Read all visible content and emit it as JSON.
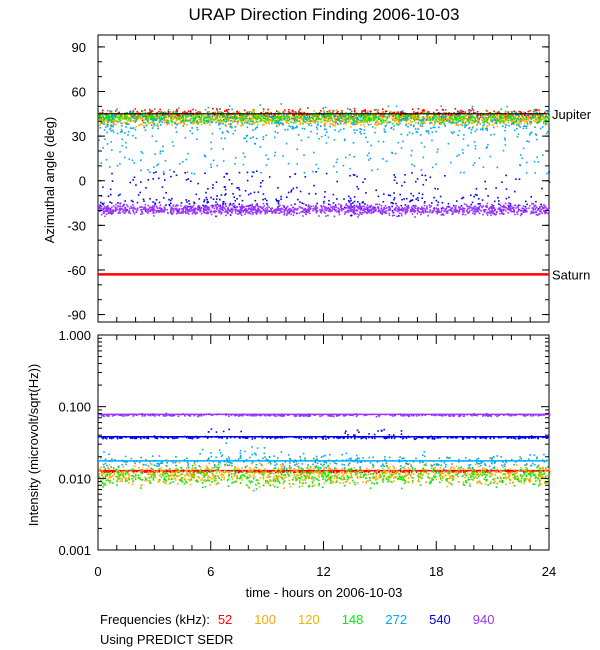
{
  "chart_data": [
    {
      "type": "scatter",
      "title": "URAP Direction Finding  2006-10-03",
      "xlabel": "time - hours on 2006-10-03",
      "ylabel": "Azimuthal angle (deg)",
      "xlim": [
        0,
        24
      ],
      "ylim": [
        -95,
        98
      ],
      "yticks": [
        "90",
        "60",
        "30",
        "0",
        "-30",
        "-60",
        "-90"
      ],
      "ytick_values": [
        90,
        60,
        30,
        0,
        -30,
        -60,
        -90
      ],
      "reference_lines": [
        {
          "name": "Jupiter",
          "y": 45,
          "color": "#000000"
        },
        {
          "name": "Saturn",
          "y": -63,
          "color": "#ff0000"
        }
      ],
      "series": [
        {
          "freq": "52",
          "color": "#ff0000",
          "center": 45,
          "spread": 3
        },
        {
          "freq": "100",
          "color": "#ffa500",
          "center": 42,
          "spread": 4
        },
        {
          "freq": "120",
          "color": "#e6b800",
          "center": 42,
          "spread": 4
        },
        {
          "freq": "148",
          "color": "#00ee00",
          "center": 43,
          "spread": 3
        },
        {
          "freq": "272",
          "color": "#00aaee",
          "center": 40,
          "spread": 8
        },
        {
          "freq": "540",
          "color": "#0000ee",
          "center": -15,
          "spread": 6
        },
        {
          "freq": "940",
          "color": "#9933ff",
          "center": -19,
          "spread": 3
        }
      ]
    },
    {
      "type": "line",
      "xlabel": "time - hours on 2006-10-03",
      "ylabel": "Intensity (microvolt/sqrt(Hz))",
      "xlim": [
        0,
        24
      ],
      "ylim": [
        0.001,
        1.0
      ],
      "log_y": true,
      "xticks": [
        "0",
        "6",
        "12",
        "18",
        "24"
      ],
      "yticks": [
        "1.000",
        "0.100",
        "0.010",
        "0.001"
      ],
      "ytick_values": [
        1.0,
        0.1,
        0.01,
        0.001
      ],
      "series": [
        {
          "freq": "52",
          "color": "#ff0000",
          "level": 0.0128
        },
        {
          "freq": "100",
          "color": "#ffa500",
          "level": 0.0118
        },
        {
          "freq": "120",
          "color": "#e6b800",
          "level": 0.0115
        },
        {
          "freq": "148",
          "color": "#00ee00",
          "level": 0.0108
        },
        {
          "freq": "272",
          "color": "#00aaee",
          "level": 0.0175
        },
        {
          "freq": "540",
          "color": "#0000ee",
          "level": 0.038
        },
        {
          "freq": "940",
          "color": "#9933ff",
          "level": 0.078
        }
      ]
    }
  ],
  "legend": {
    "title": "Frequencies (kHz):",
    "items": [
      {
        "label": "52",
        "color": "#ff0000"
      },
      {
        "label": "100",
        "color": "#ffa500"
      },
      {
        "label": "120",
        "color": "#e6b800"
      },
      {
        "label": "148",
        "color": "#00ee00"
      },
      {
        "label": "272",
        "color": "#00aaee"
      },
      {
        "label": "540",
        "color": "#0000ee"
      },
      {
        "label": "940",
        "color": "#9933ff"
      }
    ],
    "note": "Using PREDICT SEDR"
  }
}
